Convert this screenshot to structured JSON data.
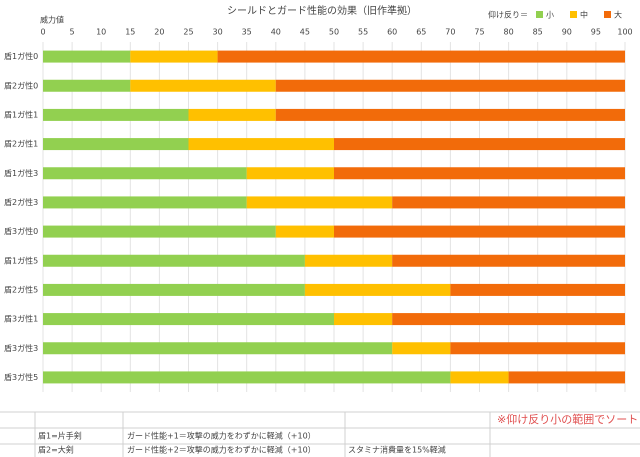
{
  "chart_data": {
    "type": "stacked-barh",
    "title": "シールドとガード性能の効果（旧作準拠）",
    "x_label": "威力値",
    "legend_title": "仰け反り＝",
    "categories": [
      "盾1ガ性0",
      "盾2ガ性0",
      "盾1ガ性1",
      "盾2ガ性1",
      "盾1ガ性3",
      "盾2ガ性3",
      "盾3ガ性0",
      "盾1ガ性5",
      "盾2ガ性5",
      "盾3ガ性1",
      "盾3ガ性3",
      "盾3ガ性5"
    ],
    "series": [
      {
        "name": "小",
        "color": "#92d050",
        "values": [
          15,
          15,
          25,
          25,
          35,
          35,
          40,
          45,
          45,
          50,
          60,
          70
        ]
      },
      {
        "name": "中",
        "color": "#ffc000",
        "values": [
          15,
          25,
          15,
          25,
          15,
          25,
          10,
          15,
          25,
          10,
          10,
          10
        ]
      },
      {
        "name": "大",
        "color": "#f26b0a",
        "values": [
          70,
          60,
          60,
          50,
          50,
          40,
          50,
          40,
          30,
          40,
          30,
          20
        ]
      }
    ],
    "xlim": [
      0,
      100
    ],
    "xticks": [
      0,
      5,
      10,
      15,
      20,
      25,
      30,
      35,
      40,
      45,
      50,
      55,
      60,
      65,
      70,
      75,
      80,
      85,
      90,
      95,
      100
    ],
    "grid": true
  },
  "sheet": {
    "note": "※仰け反り小の範囲でソート",
    "rows": [
      [
        "盾1=片手剣",
        "ガード性能+1＝攻撃の威力をわずかに軽減（+10）",
        ""
      ],
      [
        "盾2=大剣",
        "ガード性能+2＝攻撃の威力をわずかに軽減（+10）",
        "スタミナ消費量を15%軽減"
      ]
    ]
  }
}
